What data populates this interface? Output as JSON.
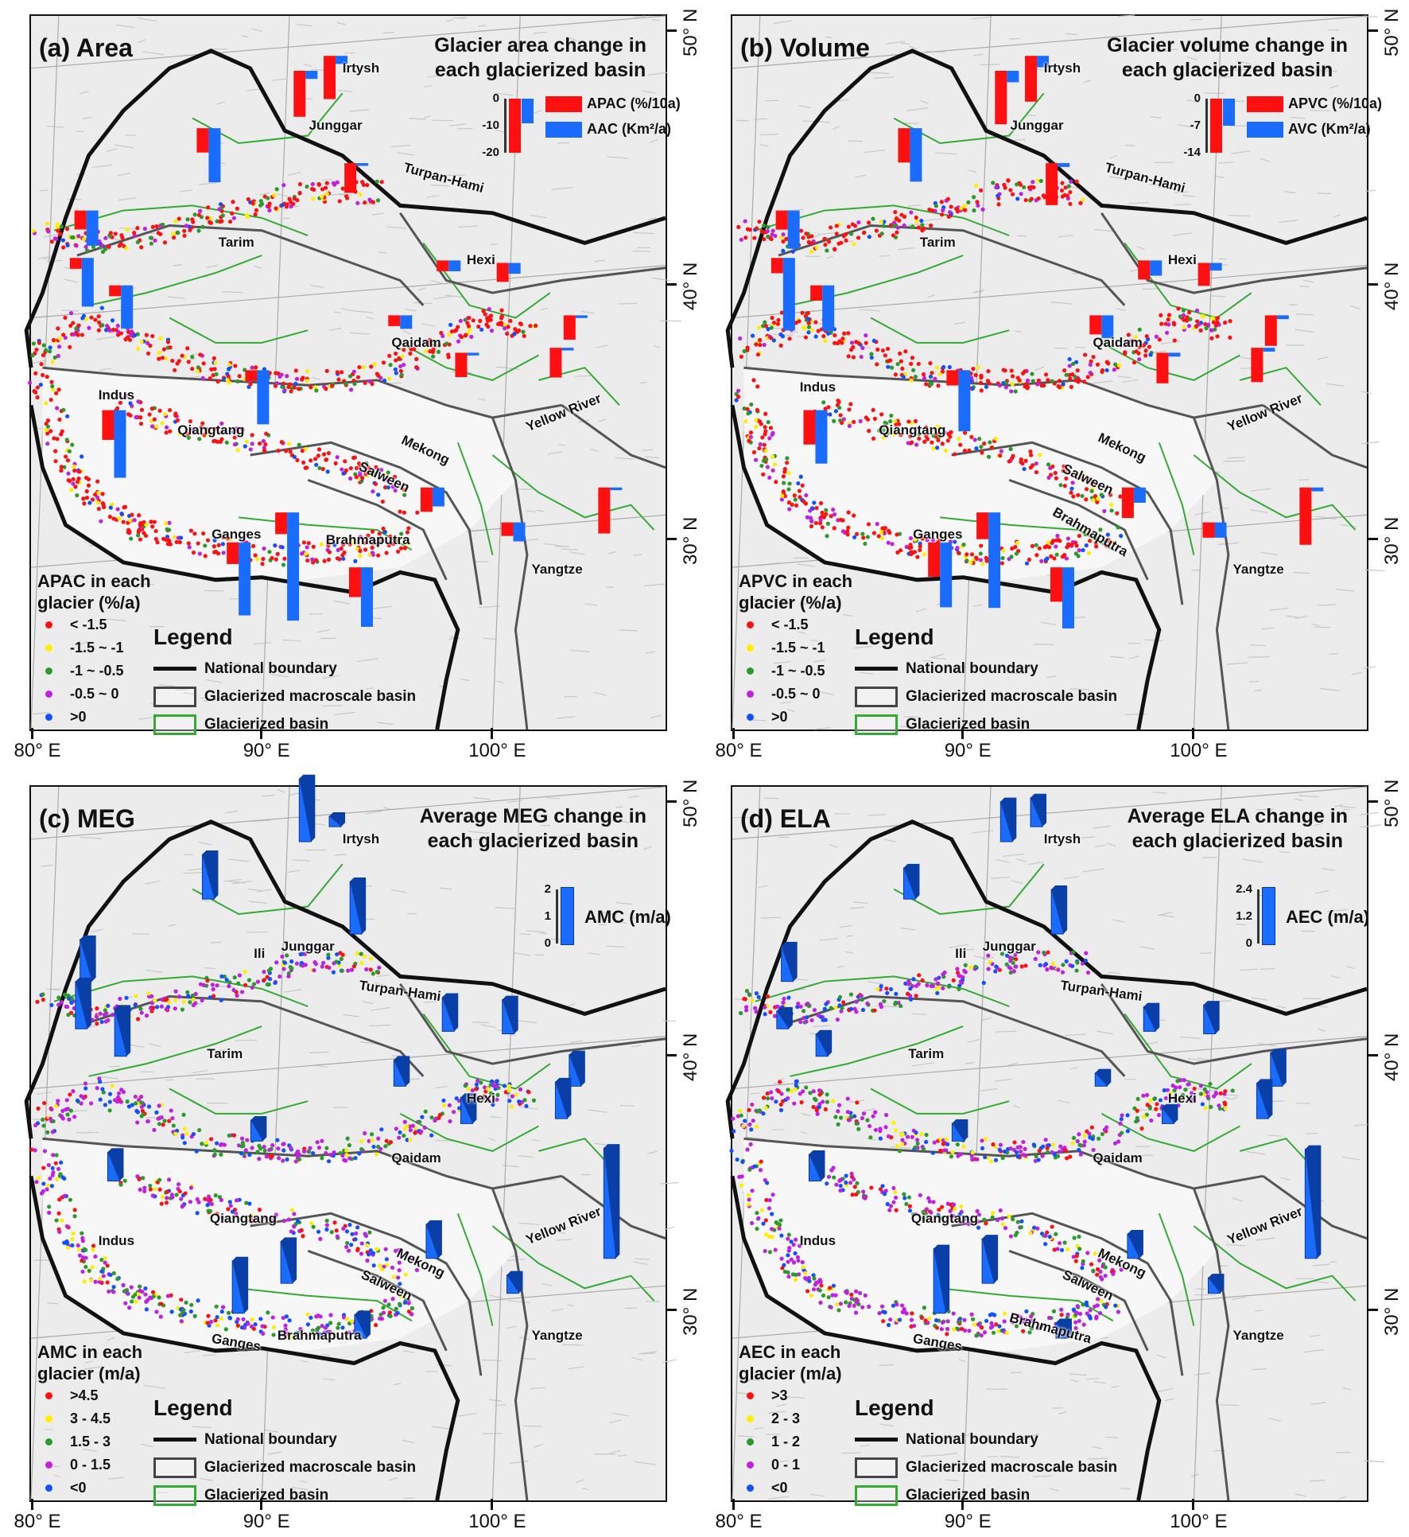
{
  "colors": {
    "red": "#ff1010",
    "blue": "#1a6cff",
    "national": "#111111",
    "macro": "#555555",
    "basin": "#33aa33",
    "yellow": "#ffee00",
    "green": "#2a9a2a",
    "purple": "#c020e0",
    "dotblue": "#1050ff"
  },
  "axes": {
    "lon_ticks": [
      "80° E",
      "90° E",
      "100° E"
    ],
    "lon_values": [
      80,
      90,
      100
    ],
    "lat_ticks": [
      "50° N",
      "40° N",
      "30° N"
    ],
    "lat_values": [
      50,
      40,
      30
    ]
  },
  "line_legend": {
    "title": "Legend",
    "items": [
      "National boundary",
      "Glacierized macroscale basin",
      "Glacierized basin"
    ]
  },
  "basin_anchors": [
    [
      91.9,
      48.4
    ],
    [
      93.2,
      49.0
    ],
    [
      87.7,
      46.1
    ],
    [
      94.1,
      44.7
    ],
    [
      82.4,
      42.8
    ],
    [
      82.2,
      40.9
    ],
    [
      83.9,
      39.8
    ],
    [
      98.1,
      40.8
    ],
    [
      100.7,
      40.7
    ],
    [
      96.0,
      38.6
    ],
    [
      103.6,
      38.6
    ],
    [
      98.9,
      37.1
    ],
    [
      103.0,
      37.3
    ],
    [
      83.6,
      34.8
    ],
    [
      89.8,
      36.4
    ],
    [
      97.4,
      31.7
    ],
    [
      91.1,
      30.7
    ],
    [
      89.0,
      29.5
    ],
    [
      94.3,
      28.5
    ],
    [
      100.9,
      30.3
    ],
    [
      105.1,
      31.7
    ]
  ],
  "panels": [
    {
      "id": "a",
      "title": "(a) Area",
      "header": [
        "Glacier area change in",
        "each glacierized basin"
      ],
      "inset": {
        "type": "pair",
        "ticks": [
          "0",
          "-10",
          "-20"
        ],
        "series": [
          {
            "name": "APAC (%/10a)",
            "color": "#ff1010",
            "example": -20
          },
          {
            "name": "AAC (Km²/a)",
            "color": "#1a6cff",
            "example": -9
          }
        ]
      },
      "dot_legend": {
        "title": [
          "APAC in each",
          "glacier (%/a)"
        ],
        "items": [
          {
            "label": "< -1.5",
            "color": "#ff1010"
          },
          {
            "label": "-1.5 ~ -1",
            "color": "#ffee00"
          },
          {
            "label": "-1 ~ -0.5",
            "color": "#2a9a2a"
          },
          {
            "label": "-0.5 ~ 0",
            "color": "#c020e0"
          },
          {
            "label": ">0",
            "color": "#1050ff"
          }
        ]
      },
      "basin_labels": [
        {
          "text": "Irtysh",
          "lon": 94.3,
          "lat": 48.5
        },
        {
          "text": "Junggar",
          "lon": 93.2,
          "lat": 46.2
        },
        {
          "text": "Turpan-Hami",
          "lon": 97.9,
          "lat": 44.1,
          "rot": 15
        },
        {
          "text": "Tarim",
          "lon": 88.9,
          "lat": 41.5
        },
        {
          "text": "Hexi",
          "lon": 99.5,
          "lat": 40.8
        },
        {
          "text": "Qaidam",
          "lon": 96.7,
          "lat": 37.5
        },
        {
          "text": "Indus",
          "lon": 83.7,
          "lat": 35.4
        },
        {
          "text": "Qiangtang",
          "lon": 87.8,
          "lat": 34.0
        },
        {
          "text": "Yellow River",
          "lon": 103.1,
          "lat": 34.7,
          "rot": -22
        },
        {
          "text": "Mekong",
          "lon": 97.1,
          "lat": 33.2,
          "rot": 25
        },
        {
          "text": "Salween",
          "lon": 95.3,
          "lat": 32.1,
          "rot": 25
        },
        {
          "text": "Ganges",
          "lon": 88.9,
          "lat": 29.8
        },
        {
          "text": "Brahmaputra",
          "lon": 94.6,
          "lat": 29.6
        },
        {
          "text": "Yangtze",
          "lon": 102.8,
          "lat": 28.4
        }
      ],
      "bars": [
        [
          -17,
          -3
        ],
        [
          -16,
          -3
        ],
        [
          -9,
          -20
        ],
        [
          -11,
          -1
        ],
        [
          -7,
          -13
        ],
        [
          -4,
          -18
        ],
        [
          -4,
          -16
        ],
        [
          -4,
          -4
        ],
        [
          -7,
          -4
        ],
        [
          -4,
          -5
        ],
        [
          -9,
          -1
        ],
        [
          -9,
          -1
        ],
        [
          -11,
          -1
        ],
        [
          -11,
          -25
        ],
        [
          -4,
          -20
        ],
        [
          -9,
          -7
        ],
        [
          -8,
          -40
        ],
        [
          -8,
          -27
        ],
        [
          -11,
          -22
        ],
        [
          -5,
          -7
        ],
        [
          -17,
          -1
        ]
      ]
    },
    {
      "id": "b",
      "title": "(b) Volume",
      "header": [
        "Glacier volume change in",
        "each glacierized basin"
      ],
      "inset": {
        "type": "pair",
        "ticks": [
          "0",
          "-7",
          "-14"
        ],
        "series": [
          {
            "name": "APVC (%/10a)",
            "color": "#ff1010",
            "example": -14
          },
          {
            "name": "AVC (Km²/a)",
            "color": "#1a6cff",
            "example": -7
          }
        ]
      },
      "dot_legend": {
        "title": [
          "APVC in each",
          "glacier (%/a)"
        ],
        "items": [
          {
            "label": "< -1.5",
            "color": "#ff1010"
          },
          {
            "label": "-1.5 ~ -1",
            "color": "#ffee00"
          },
          {
            "label": "-1 ~ -0.5",
            "color": "#2a9a2a"
          },
          {
            "label": "-0.5 ~ 0",
            "color": "#c020e0"
          },
          {
            "label": ">0",
            "color": "#1050ff"
          }
        ]
      },
      "basin_labels": [
        {
          "text": "Irtysh",
          "lon": 94.3,
          "lat": 48.5
        },
        {
          "text": "Junggar",
          "lon": 93.2,
          "lat": 46.2
        },
        {
          "text": "Turpan-Hami",
          "lon": 97.9,
          "lat": 44.1,
          "rot": 15
        },
        {
          "text": "Tarim",
          "lon": 88.9,
          "lat": 41.5
        },
        {
          "text": "Hexi",
          "lon": 99.5,
          "lat": 40.8
        },
        {
          "text": "Qaidam",
          "lon": 96.7,
          "lat": 37.5
        },
        {
          "text": "Indus",
          "lon": 83.7,
          "lat": 35.7
        },
        {
          "text": "Qiangtang",
          "lon": 87.8,
          "lat": 34.0
        },
        {
          "text": "Yellow River",
          "lon": 103.1,
          "lat": 34.7,
          "rot": -22
        },
        {
          "text": "Mekong",
          "lon": 96.9,
          "lat": 33.3,
          "rot": 25
        },
        {
          "text": "Salween",
          "lon": 95.4,
          "lat": 32.0,
          "rot": 25
        },
        {
          "text": "Ganges",
          "lon": 88.9,
          "lat": 29.8
        },
        {
          "text": "Brahmaputra",
          "lon": 95.5,
          "lat": 29.9,
          "rot": 30
        },
        {
          "text": "Yangtze",
          "lon": 102.8,
          "lat": 28.4
        }
      ],
      "bars": [
        [
          -14,
          -3
        ],
        [
          -12,
          -3
        ],
        [
          -9,
          -14
        ],
        [
          -11,
          -1
        ],
        [
          -5,
          -10
        ],
        [
          -4,
          -19
        ],
        [
          -4,
          -12
        ],
        [
          -5,
          -4
        ],
        [
          -6,
          -2
        ],
        [
          -5,
          -6
        ],
        [
          -8,
          -1
        ],
        [
          -8,
          -1
        ],
        [
          -9,
          -1
        ],
        [
          -9,
          -14
        ],
        [
          -4,
          -16
        ],
        [
          -8,
          -4
        ],
        [
          -7,
          -25
        ],
        [
          -9,
          -17
        ],
        [
          -9,
          -16
        ],
        [
          -4,
          -4
        ],
        [
          -15,
          -1
        ]
      ]
    },
    {
      "id": "c",
      "title": "(c) MEG",
      "header": [
        "Average MEG change in",
        "each glacierized basin"
      ],
      "inset": {
        "type": "single",
        "ticks": [
          "2",
          "1",
          "0"
        ],
        "max": 2,
        "series": [
          {
            "name": "AMC (m/a)",
            "color": "#1a6cff",
            "example": 2.1
          }
        ]
      },
      "dot_legend": {
        "title": [
          "AMC in each",
          "glacier (m/a)"
        ],
        "items": [
          {
            "label": ">4.5",
            "color": "#ff1010"
          },
          {
            "label": "3 - 4.5",
            "color": "#ffee00"
          },
          {
            "label": "1.5 - 3",
            "color": "#2a9a2a"
          },
          {
            "label": "0 - 1.5",
            "color": "#c020e0"
          },
          {
            "label": "<0",
            "color": "#1050ff"
          }
        ]
      },
      "basin_labels": [
        {
          "text": "Irtysh",
          "lon": 94.3,
          "lat": 48.5
        },
        {
          "text": "Ili",
          "lon": 89.9,
          "lat": 43.9
        },
        {
          "text": "Junggar",
          "lon": 92.0,
          "lat": 44.2
        },
        {
          "text": "Turpan-Hami",
          "lon": 96.0,
          "lat": 42.4,
          "rot": 8
        },
        {
          "text": "Tarim",
          "lon": 88.4,
          "lat": 39.9
        },
        {
          "text": "Hexi",
          "lon": 99.5,
          "lat": 38.1
        },
        {
          "text": "Qaidam",
          "lon": 96.7,
          "lat": 35.7
        },
        {
          "text": "Indus",
          "lon": 83.7,
          "lat": 32.4
        },
        {
          "text": "Qiangtang",
          "lon": 89.2,
          "lat": 33.3
        },
        {
          "text": "Yellow River",
          "lon": 103.1,
          "lat": 33.0,
          "rot": -22
        },
        {
          "text": "Mekong",
          "lon": 96.9,
          "lat": 31.5,
          "rot": 25
        },
        {
          "text": "Salween",
          "lon": 95.4,
          "lat": 30.6,
          "rot": 25
        },
        {
          "text": "Ganges",
          "lon": 88.9,
          "lat": 28.3,
          "rot": 10
        },
        {
          "text": "Brahmaputra",
          "lon": 92.5,
          "lat": 28.6
        },
        {
          "text": "Yangtze",
          "lon": 102.8,
          "lat": 28.6
        }
      ],
      "bars": [
        2.4,
        0.4,
        1.7,
        2.0,
        1.6,
        1.8,
        1.8,
        1.3,
        1.3,
        1.0,
        1.2,
        1.0,
        1.4,
        1.1,
        0.8,
        1.3,
        1.6,
        2.0,
        0.9,
        0.7,
        4.2
      ]
    },
    {
      "id": "d",
      "title": "(d) ELA",
      "header": [
        "Average ELA change in",
        "each glacierized basin"
      ],
      "inset": {
        "type": "single",
        "ticks": [
          "2.4",
          "1.2",
          "0"
        ],
        "max": 2.4,
        "series": [
          {
            "name": "AEC (m/a)",
            "color": "#1a6cff",
            "example": 2.5
          }
        ]
      },
      "dot_legend": {
        "title": [
          "AEC in each",
          "glacier (m/a)"
        ],
        "items": [
          {
            "label": ">3",
            "color": "#ff1010"
          },
          {
            "label": "2 - 3",
            "color": "#ffee00"
          },
          {
            "label": "1 - 2",
            "color": "#2a9a2a"
          },
          {
            "label": "0 - 1",
            "color": "#c020e0"
          },
          {
            "label": "<0",
            "color": "#1050ff"
          }
        ]
      },
      "basin_labels": [
        {
          "text": "Irtysh",
          "lon": 94.3,
          "lat": 48.5
        },
        {
          "text": "Ili",
          "lon": 89.9,
          "lat": 43.9
        },
        {
          "text": "Junggar",
          "lon": 92.0,
          "lat": 44.2
        },
        {
          "text": "Turpan-Hami",
          "lon": 96.0,
          "lat": 42.4,
          "rot": 8
        },
        {
          "text": "Tarim",
          "lon": 88.4,
          "lat": 39.9
        },
        {
          "text": "Hexi",
          "lon": 99.5,
          "lat": 38.1
        },
        {
          "text": "Qaidam",
          "lon": 96.7,
          "lat": 35.7
        },
        {
          "text": "Indus",
          "lon": 83.7,
          "lat": 32.4
        },
        {
          "text": "Qiangtang",
          "lon": 89.2,
          "lat": 33.3
        },
        {
          "text": "Yellow River",
          "lon": 103.1,
          "lat": 33.0,
          "rot": -22
        },
        {
          "text": "Mekong",
          "lon": 96.9,
          "lat": 31.5,
          "rot": 25
        },
        {
          "text": "Salween",
          "lon": 95.4,
          "lat": 30.6,
          "rot": 25
        },
        {
          "text": "Ganges",
          "lon": 88.9,
          "lat": 28.3,
          "rot": 10
        },
        {
          "text": "Brahmaputra",
          "lon": 93.8,
          "lat": 28.9,
          "rot": 15
        },
        {
          "text": "Yangtze",
          "lon": 102.8,
          "lat": 28.6
        }
      ],
      "bars": [
        1.8,
        1.3,
        1.4,
        2.0,
        1.6,
        0.8,
        1.0,
        1.1,
        1.3,
        0.6,
        1.5,
        0.7,
        1.6,
        1.2,
        0.8,
        1.1,
        2.0,
        2.9,
        0.7,
        0.7,
        4.9
      ]
    }
  ]
}
